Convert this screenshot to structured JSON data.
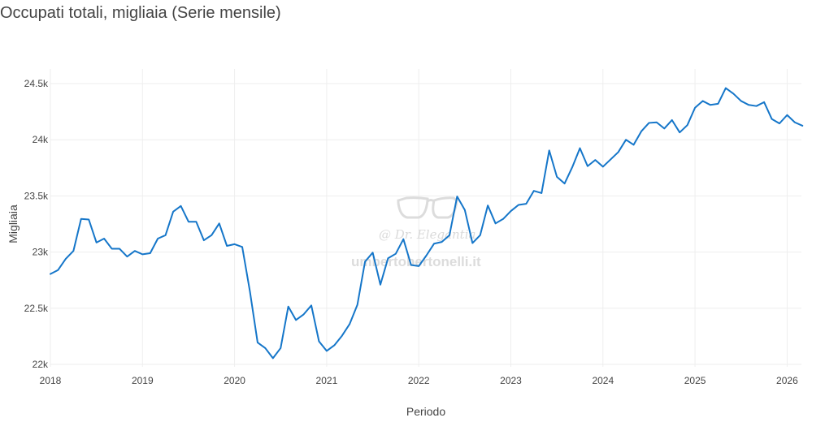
{
  "title": "Occupati totali, migliaia (Serie mensile)",
  "colors": {
    "line": "#1576c9",
    "grid": "#eeeeee",
    "text": "#444444",
    "watermark": "#d9d9d9"
  },
  "watermark": {
    "icon": "glasses-icon",
    "name": "@ Dr. Elegantia",
    "site": "umbertobertonelli.it"
  },
  "chart_data": {
    "type": "line",
    "title": "Occupati totali, migliaia (Serie mensile)",
    "xlabel": "Periodo",
    "ylabel": "Migliaia",
    "ylim": [
      22000,
      24600
    ],
    "grid": true,
    "legend": "none",
    "x_ticks": [
      "2018",
      "2019",
      "2020",
      "2021",
      "2022",
      "2023",
      "2024",
      "2025",
      "2026"
    ],
    "y_ticks": [
      "22k",
      "22.5k",
      "23k",
      "23.5k",
      "24k",
      "24.5k"
    ],
    "y_tick_values": [
      22000,
      22500,
      23000,
      23500,
      24000,
      24500
    ],
    "x": [
      "2018-01",
      "2018-02",
      "2018-03",
      "2018-04",
      "2018-05",
      "2018-06",
      "2018-07",
      "2018-08",
      "2018-09",
      "2018-10",
      "2018-11",
      "2018-12",
      "2019-01",
      "2019-02",
      "2019-03",
      "2019-04",
      "2019-05",
      "2019-06",
      "2019-07",
      "2019-08",
      "2019-09",
      "2019-10",
      "2019-11",
      "2019-12",
      "2020-01",
      "2020-02",
      "2020-03",
      "2020-04",
      "2020-05",
      "2020-06",
      "2020-07",
      "2020-08",
      "2020-09",
      "2020-10",
      "2020-11",
      "2020-12",
      "2021-01",
      "2021-02",
      "2021-03",
      "2021-04",
      "2021-05",
      "2021-06",
      "2021-07",
      "2021-08",
      "2021-09",
      "2021-10",
      "2021-11",
      "2021-12",
      "2022-01",
      "2022-02",
      "2022-03",
      "2022-04",
      "2022-05",
      "2022-06",
      "2022-07",
      "2022-08",
      "2022-09",
      "2022-10",
      "2022-11",
      "2022-12",
      "2023-01",
      "2023-02",
      "2023-03",
      "2023-04",
      "2023-05",
      "2023-06",
      "2023-07",
      "2023-08",
      "2023-09",
      "2023-10",
      "2023-11",
      "2023-12",
      "2024-01",
      "2024-02",
      "2024-03",
      "2024-04",
      "2024-05",
      "2024-06",
      "2024-07",
      "2024-08",
      "2024-09",
      "2024-10",
      "2024-11",
      "2024-12",
      "2025-01",
      "2025-02",
      "2025-03",
      "2025-04",
      "2025-05",
      "2025-06",
      "2025-07",
      "2025-08",
      "2025-09",
      "2025-10",
      "2025-11",
      "2025-12",
      "2026-01",
      "2026-02",
      "2026-03"
    ],
    "series": [
      {
        "values": [
          22805,
          22840,
          22940,
          23010,
          23295,
          23290,
          23085,
          23120,
          23030,
          23030,
          22960,
          23010,
          22980,
          22990,
          23120,
          23150,
          23360,
          23410,
          23270,
          23270,
          23105,
          23150,
          23255,
          23055,
          23070,
          23045,
          22650,
          22195,
          22145,
          22055,
          22145,
          22515,
          22395,
          22445,
          22525,
          22205,
          22120,
          22170,
          22255,
          22360,
          22530,
          22915,
          22995,
          22710,
          22945,
          22985,
          23115,
          22885,
          22875,
          22970,
          23075,
          23090,
          23150,
          23495,
          23375,
          23080,
          23150,
          23415,
          23255,
          23295,
          23365,
          23420,
          23430,
          23545,
          23525,
          23905,
          23670,
          23610,
          23755,
          23925,
          23765,
          23820,
          23760,
          23825,
          23890,
          24000,
          23955,
          24075,
          24150,
          24155,
          24100,
          24175,
          24065,
          24130,
          24285,
          24345,
          24310,
          24320,
          24460,
          24410,
          24345,
          24310,
          24300,
          24335,
          24185,
          24145,
          24220,
          24155,
          24125
        ]
      }
    ]
  }
}
